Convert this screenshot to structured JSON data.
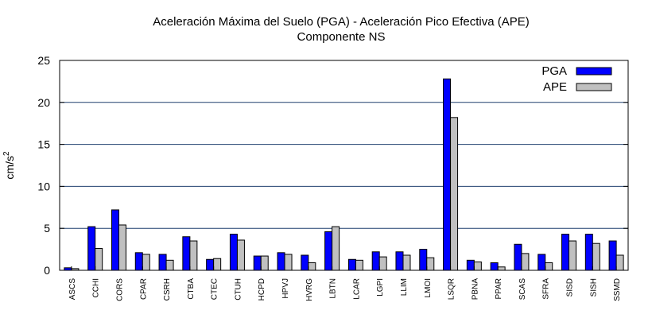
{
  "chart_data": {
    "type": "bar",
    "title": "Aceleración Máxima del Suelo (PGA) -  Aceleración Pico Efectiva (APE)",
    "subtitle": "Componente NS",
    "xlabel": "",
    "ylabel": "cm/s",
    "ylabel_superscript": "2",
    "ylim": [
      0,
      25
    ],
    "yticks": [
      "0",
      "5",
      "10",
      "15",
      "20",
      "25"
    ],
    "grid": true,
    "legend_position": "top-right",
    "categories": [
      "ASCS",
      "CCHI",
      "CORS",
      "CPAR",
      "CSRH",
      "CTBA",
      "CTEC",
      "CTUH",
      "HCPD",
      "HPVJ",
      "HVRG",
      "LBTN",
      "LCAR",
      "LGPI",
      "LLIM",
      "LMOI",
      "LSQR",
      "PBNA",
      "PPAR",
      "SCAS",
      "SFRA",
      "SISD",
      "SISH",
      "SSMD"
    ],
    "series": [
      {
        "name": "PGA",
        "color": "#0000ff",
        "values": [
          0.3,
          5.2,
          7.2,
          2.1,
          1.9,
          4.0,
          1.3,
          4.3,
          1.7,
          2.1,
          1.8,
          4.6,
          1.3,
          2.2,
          2.2,
          2.5,
          22.8,
          1.2,
          0.9,
          3.1,
          1.9,
          4.3,
          4.3,
          3.5
        ]
      },
      {
        "name": "APE",
        "color": "#c0c0c0",
        "values": [
          0.2,
          2.6,
          5.4,
          1.9,
          1.2,
          3.5,
          1.4,
          3.6,
          1.7,
          1.9,
          0.9,
          5.2,
          1.2,
          1.6,
          1.8,
          1.5,
          18.2,
          1.0,
          0.4,
          2.0,
          0.9,
          3.5,
          3.2,
          1.8
        ]
      }
    ]
  }
}
